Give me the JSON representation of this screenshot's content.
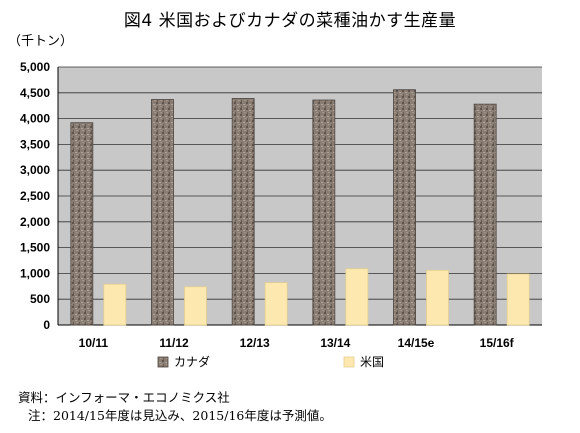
{
  "title": "図4 米国およびカナダの菜種油かす生産量",
  "unit_label": "（千トン）",
  "source_note": "資料：インフォーマ・エコノミクス社",
  "footnote": "注：2014/15年度は見込み、2015/16年度は予測値。",
  "chart_data": {
    "type": "bar",
    "categories": [
      "10/11",
      "11/12",
      "12/13",
      "13/14",
      "14/15e",
      "15/16f"
    ],
    "series": [
      {
        "name": "カナダ",
        "values": [
          3920,
          4370,
          4390,
          4360,
          4560,
          4280
        ],
        "color": "#8a7e74"
      },
      {
        "name": "米国",
        "values": [
          790,
          740,
          820,
          1090,
          1060,
          990
        ],
        "color": "#fde9b0"
      }
    ],
    "ylim": [
      0,
      5000
    ],
    "yticks": [
      0,
      500,
      1000,
      1500,
      2000,
      2500,
      3000,
      3500,
      4000,
      4500,
      5000
    ],
    "ytick_labels": [
      "0",
      "500",
      "1,000",
      "1,500",
      "2,000",
      "2,500",
      "3,000",
      "3,500",
      "4,000",
      "4,500",
      "5,000"
    ],
    "grid": true,
    "legend_position": "bottom",
    "plot_background": "#c8c8c8"
  }
}
